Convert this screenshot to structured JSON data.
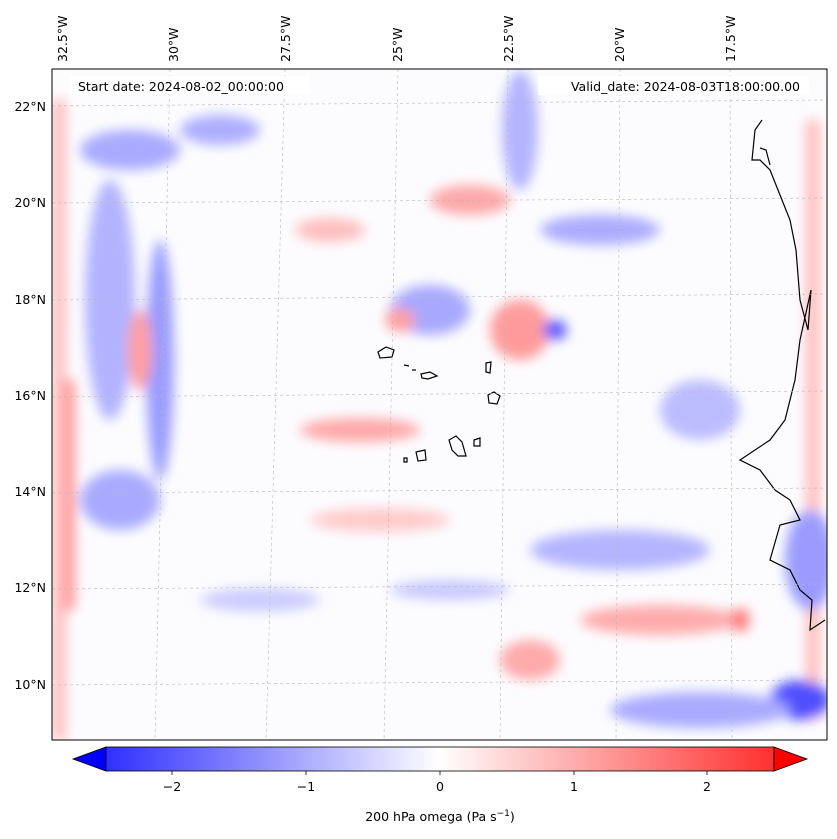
{
  "header": {
    "start_date": "Start date: 2024-08-02_00:00:00",
    "valid_date": "Valid_date: 2024-08-03T18:00:00.00"
  },
  "map": {
    "lon_ticks": [
      "32.5°W",
      "30°W",
      "27.5°W",
      "25°W",
      "22.5°W",
      "20°W",
      "17.5°W"
    ],
    "lat_ticks": [
      "22°N",
      "20°N",
      "18°N",
      "16°N",
      "14°N",
      "12°N",
      "10°N"
    ],
    "extent": {
      "lon_min": -32.6,
      "lon_max": -15.0,
      "lat_min": 8.9,
      "lat_max": 22.8
    },
    "gridlines": true
  },
  "colorbar": {
    "ticks": [
      "−2",
      "−1",
      "0",
      "1",
      "2"
    ],
    "tick_values": [
      -2,
      -1,
      0,
      1,
      2
    ],
    "range": [
      -2.5,
      2.5
    ],
    "extend": "both",
    "label_main": "200 hPa omega (Pa s",
    "label_sup": "−1",
    "label_close": ")",
    "cmap": "bwr",
    "colors": {
      "negative": "#0000ff",
      "zero": "#ffffff",
      "positive": "#ff0000"
    }
  }
}
